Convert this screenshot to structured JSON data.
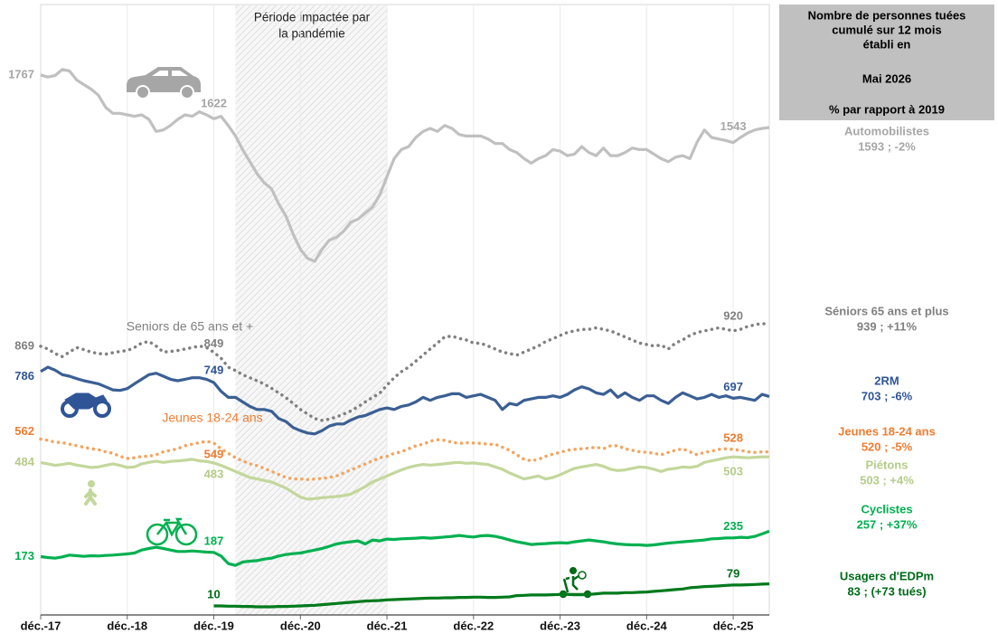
{
  "chart_data": {
    "type": "line",
    "legend_title": [
      "Nombre de personnes tuées",
      "cumulé sur 12 mois",
      "établi en",
      "Mai 2026",
      "% par rapport à 2019"
    ],
    "pandemic_label": [
      "Période impactée par",
      "la pandémie"
    ],
    "categories": [
      "déc.-17",
      null,
      null,
      null,
      null,
      null,
      null,
      null,
      null,
      null,
      null,
      null,
      "déc.-18",
      null,
      null,
      null,
      null,
      null,
      null,
      null,
      null,
      null,
      null,
      null,
      "déc.-19",
      null,
      null,
      null,
      null,
      null,
      null,
      null,
      null,
      null,
      null,
      null,
      "déc.-20",
      null,
      null,
      null,
      null,
      null,
      null,
      null,
      null,
      null,
      null,
      null,
      "déc.-21",
      null,
      null,
      null,
      null,
      null,
      null,
      null,
      null,
      null,
      null,
      null,
      "déc.-22",
      null,
      null,
      null,
      null,
      null,
      null,
      null,
      null,
      null,
      null,
      null,
      "déc.-23",
      null,
      null,
      null,
      null,
      null,
      null,
      null,
      null,
      null,
      null,
      null,
      "déc.-24",
      null,
      null,
      null,
      null,
      null,
      null,
      null,
      null,
      null,
      null,
      null,
      "déc.-25",
      null,
      null,
      null,
      null,
      null
    ],
    "ylim": [
      -20,
      2000
    ],
    "grid": true,
    "series": [
      {
        "name": "Automobilistes",
        "summary": "1593 ; -2%",
        "color": "#c0c0c0",
        "label_color": "#a6a6a6",
        "dash": "solid",
        "values": [
          1767,
          1760,
          1765,
          1785,
          1780,
          1750,
          1735,
          1720,
          1700,
          1660,
          1640,
          1640,
          1635,
          1630,
          1635,
          1620,
          1580,
          1585,
          1600,
          1620,
          1635,
          1630,
          1645,
          1635,
          1622,
          1630,
          1600,
          1565,
          1520,
          1480,
          1440,
          1410,
          1390,
          1340,
          1300,
          1240,
          1190,
          1160,
          1150,
          1190,
          1220,
          1230,
          1250,
          1280,
          1290,
          1310,
          1330,
          1370,
          1430,
          1490,
          1520,
          1530,
          1560,
          1580,
          1590,
          1580,
          1600,
          1590,
          1570,
          1565,
          1565,
          1565,
          1555,
          1540,
          1540,
          1520,
          1510,
          1490,
          1475,
          1490,
          1500,
          1520,
          1515,
          1500,
          1505,
          1530,
          1510,
          1500,
          1525,
          1500,
          1500,
          1510,
          1525,
          1520,
          1520,
          1505,
          1490,
          1480,
          1495,
          1500,
          1490,
          1545,
          1585,
          1560,
          1555,
          1550,
          1543,
          1560,
          1575,
          1585,
          1590,
          1593
        ]
      },
      {
        "name": "Séniors 65 ans et plus",
        "summary": "939 ; +11%",
        "inline_label": "Seniors de 65 ans et +",
        "color": "#808080",
        "label_color": "#808080",
        "dash": "dotted",
        "values": [
          869,
          860,
          845,
          835,
          850,
          865,
          858,
          850,
          845,
          843,
          848,
          852,
          855,
          865,
          880,
          885,
          870,
          850,
          852,
          855,
          860,
          865,
          870,
          865,
          849,
          830,
          800,
          789,
          775,
          765,
          755,
          744,
          730,
          715,
          699,
          680,
          660,
          645,
          630,
          624,
          628,
          635,
          645,
          655,
          669,
          685,
          700,
          714,
          740,
          765,
          785,
          800,
          820,
          840,
          860,
          880,
          900,
          903,
          895,
          890,
          880,
          879,
          870,
          860,
          850,
          845,
          840,
          850,
          860,
          870,
          885,
          894,
          905,
          915,
          920,
          925,
          925,
          930,
          925,
          920,
          910,
          900,
          890,
          880,
          875,
          870,
          873,
          860,
          880,
          890,
          905,
          915,
          920,
          925,
          930,
          925,
          920,
          925,
          935,
          940,
          945,
          939
        ]
      },
      {
        "name": "2RM",
        "summary": "703 ; -6%",
        "color": "#3a5f94",
        "label_color": "#2f5597",
        "dash": "solid",
        "values": [
          786,
          800,
          790,
          775,
          770,
          762,
          755,
          750,
          745,
          735,
          725,
          723,
          729,
          745,
          760,
          775,
          780,
          770,
          760,
          755,
          760,
          765,
          765,
          760,
          749,
          720,
          700,
          700,
          685,
          670,
          660,
          660,
          654,
          630,
          620,
          600,
          590,
          582,
          579,
          590,
          605,
          612,
          612,
          625,
          635,
          640,
          650,
          660,
          665,
          660,
          670,
          675,
          685,
          700,
          690,
          700,
          705,
          712,
          712,
          700,
          705,
          710,
          700,
          690,
          660,
          680,
          675,
          690,
          695,
          700,
          700,
          705,
          700,
          710,
          725,
          735,
          728,
          715,
          710,
          725,
          700,
          715,
          700,
          690,
          705,
          705,
          690,
          680,
          700,
          715,
          705,
          695,
          700,
          710,
          700,
          705,
          697,
          700,
          695,
          690,
          710,
          703
        ]
      },
      {
        "name": "Jeunes 18-24 ans",
        "summary": "520 ; -5%",
        "inline_label": "Jeunes 18-24 ans",
        "color": "#f4a460",
        "label_color": "#ed7d31",
        "dash": "dotted",
        "values": [
          562,
          558,
          552,
          550,
          545,
          540,
          535,
          530,
          527,
          520,
          515,
          505,
          498,
          500,
          505,
          505,
          510,
          520,
          525,
          530,
          540,
          545,
          550,
          555,
          549,
          530,
          515,
          500,
          490,
          480,
          474,
          465,
          455,
          445,
          435,
          430,
          430,
          428,
          430,
          432,
          435,
          440,
          450,
          460,
          470,
          480,
          490,
          500,
          505,
          515,
          520,
          530,
          540,
          545,
          555,
          560,
          558,
          552,
          548,
          550,
          549,
          548,
          545,
          545,
          535,
          525,
          510,
          495,
          490,
          495,
          505,
          512,
          518,
          525,
          528,
          530,
          532,
          535,
          530,
          540,
          540,
          530,
          525,
          520,
          518,
          515,
          510,
          518,
          525,
          530,
          520,
          510,
          518,
          522,
          528,
          530,
          528,
          525,
          520,
          518,
          520,
          520
        ]
      },
      {
        "name": "Piétons",
        "summary": "503 ; +4%",
        "color": "#c4d79b",
        "label_color": "#b5cc88",
        "dash": "solid",
        "values": [
          484,
          480,
          475,
          478,
          482,
          476,
          472,
          468,
          470,
          475,
          480,
          475,
          468,
          470,
          480,
          485,
          489,
          485,
          488,
          490,
          492,
          495,
          490,
          488,
          483,
          475,
          465,
          455,
          445,
          435,
          430,
          425,
          420,
          410,
          400,
          385,
          370,
          363,
          365,
          368,
          370,
          372,
          375,
          380,
          392,
          405,
          420,
          430,
          440,
          450,
          460,
          468,
          474,
          478,
          476,
          478,
          480,
          483,
          485,
          482,
          483,
          480,
          478,
          470,
          462,
          450,
          440,
          430,
          435,
          440,
          430,
          435,
          444,
          455,
          465,
          470,
          474,
          478,
          472,
          462,
          458,
          460,
          465,
          470,
          468,
          462,
          455,
          462,
          465,
          470,
          468,
          472,
          485,
          490,
          495,
          500,
          503,
          502,
          500,
          502,
          503,
          503
        ]
      },
      {
        "name": "Cyclistes",
        "summary": "257 ; +37%",
        "color": "#00b050",
        "label_color": "#00b050",
        "dash": "solid",
        "values": [
          173,
          170,
          168,
          172,
          178,
          176,
          174,
          176,
          175,
          177,
          178,
          180,
          182,
          185,
          195,
          200,
          204,
          200,
          195,
          190,
          190,
          192,
          190,
          188,
          187,
          175,
          150,
          144,
          155,
          158,
          160,
          165,
          168,
          175,
          180,
          183,
          185,
          190,
          195,
          200,
          207,
          215,
          219,
          222,
          225,
          215,
          228,
          225,
          231,
          230,
          232,
          233,
          234,
          236,
          234,
          236,
          238,
          240,
          243,
          240,
          238,
          242,
          243,
          240,
          235,
          228,
          222,
          218,
          213,
          215,
          216,
          218,
          219,
          218,
          222,
          225,
          228,
          225,
          222,
          218,
          215,
          213,
          212,
          212,
          210,
          212,
          215,
          218,
          220,
          222,
          224,
          226,
          228,
          232,
          233,
          235,
          235,
          237,
          236,
          240,
          248,
          257
        ]
      },
      {
        "name": "Usagers d'EDPm",
        "summary": "83 ; (+73 tués)",
        "color": "#007a1c",
        "label_color": "#006b18",
        "dash": "solid",
        "values": [
          null,
          null,
          null,
          null,
          null,
          null,
          null,
          null,
          null,
          null,
          null,
          null,
          null,
          null,
          null,
          null,
          null,
          null,
          null,
          null,
          null,
          null,
          null,
          null,
          10,
          10,
          9,
          9,
          8,
          8,
          7,
          7,
          7,
          8,
          8,
          9,
          10,
          11,
          12,
          14,
          16,
          18,
          20,
          22,
          24,
          26,
          27,
          28,
          30,
          31,
          32,
          33,
          34,
          35,
          36,
          36,
          37,
          37,
          38,
          38,
          39,
          39,
          38,
          38,
          39,
          40,
          44,
          45,
          46,
          46,
          46,
          47,
          48,
          48,
          47,
          47,
          48,
          50,
          52,
          52,
          52,
          54,
          54,
          55,
          56,
          58,
          60,
          62,
          64,
          66,
          70,
          72,
          74,
          75,
          76,
          78,
          79,
          79,
          80,
          81,
          82,
          83
        ]
      }
    ]
  }
}
